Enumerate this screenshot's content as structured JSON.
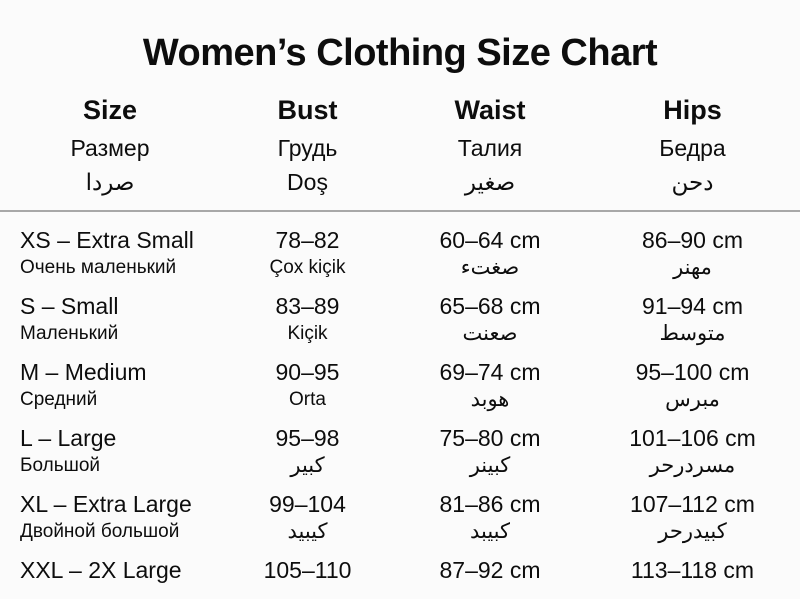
{
  "title": "Women’s Clothing Size Chart",
  "colors": {
    "background": "#fbfbfb",
    "text": "#0d0d0d",
    "divider": "#a8a8a8"
  },
  "table": {
    "columns": [
      {
        "en": "Size",
        "ru": "Размер",
        "third": "صردا"
      },
      {
        "en": "Bust",
        "ru": "Грудь",
        "third": "Doş"
      },
      {
        "en": "Waist",
        "ru": "Талия",
        "third": "صغير"
      },
      {
        "en": "Hips",
        "ru": "Бедра",
        "third": "دحن"
      }
    ],
    "rows": [
      {
        "size": "XS – Extra Small",
        "size_sub": "Очень маленький",
        "bust": "78–82",
        "bust_sub": "Çox kiçik",
        "waist": "60–64 cm",
        "waist_sub": "صغتء",
        "hips": "86–90 cm",
        "hips_sub": "مهنر"
      },
      {
        "size": "S – Small",
        "size_sub": "Маленький",
        "bust": "83–89",
        "bust_sub": "Kiçik",
        "waist": "65–68 cm",
        "waist_sub": "صعنت",
        "hips": "91–94 cm",
        "hips_sub": "متوسط"
      },
      {
        "size": "M – Medium",
        "size_sub": "Средний",
        "bust": "90–95",
        "bust_sub": "Orta",
        "waist": "69–74 cm",
        "waist_sub": "هوبد",
        "hips": "95–100 cm",
        "hips_sub": "مبرس"
      },
      {
        "size": "L – Large",
        "size_sub": "Большой",
        "bust": "95–98",
        "bust_sub": "كبير",
        "waist": "75–80 cm",
        "waist_sub": "كبينر",
        "hips": "101–106 cm",
        "hips_sub": "مسردرحر"
      },
      {
        "size": "XL – Extra Large",
        "size_sub": "Двойной большой",
        "bust": "99–104",
        "bust_sub": "كيبيد",
        "waist": "81–86 cm",
        "waist_sub": "كبيبد",
        "hips": "107–112 cm",
        "hips_sub": "كبيدرحر"
      },
      {
        "size": "XXL – 2X Large",
        "size_sub": "",
        "bust": "105–110",
        "bust_sub": "",
        "waist": "87–92 cm",
        "waist_sub": "",
        "hips": "113–118 cm",
        "hips_sub": ""
      }
    ]
  }
}
